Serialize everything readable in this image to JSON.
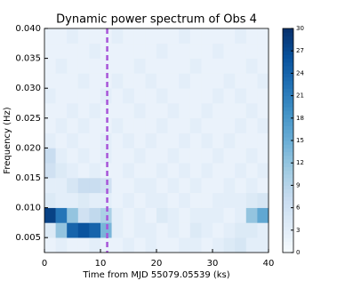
{
  "chart_data": {
    "type": "heatmap",
    "title": "Dynamic power spectrum of Obs 4",
    "x_label": "Time from MJD 55079.05539 (ks)",
    "y_label": "Frequency (Hz)",
    "x_edges": [
      0,
      2,
      4,
      6,
      8,
      10,
      12,
      14,
      16,
      18,
      20,
      22,
      24,
      26,
      28,
      30,
      32,
      34,
      36,
      38,
      40
    ],
    "y_edges": [
      0.0025,
      0.005,
      0.0075,
      0.01,
      0.0125,
      0.015,
      0.0175,
      0.02,
      0.0225,
      0.025,
      0.0275,
      0.03,
      0.0325,
      0.035,
      0.0375,
      0.04
    ],
    "values": [
      [
        2,
        3,
        2,
        2,
        3,
        2,
        2,
        3,
        2,
        3,
        2,
        2,
        3,
        3,
        2,
        3,
        4,
        5,
        3,
        3
      ],
      [
        4,
        12,
        24,
        26,
        24,
        14,
        3,
        2,
        3,
        3,
        2,
        3,
        2,
        4,
        3,
        2,
        3,
        4,
        4,
        3
      ],
      [
        28,
        22,
        12,
        6,
        8,
        10,
        3,
        2,
        3,
        2,
        4,
        3,
        2,
        3,
        3,
        3,
        2,
        3,
        12,
        16
      ],
      [
        4,
        3,
        3,
        4,
        3,
        3,
        2,
        3,
        2,
        3,
        3,
        2,
        3,
        2,
        2,
        3,
        3,
        3,
        4,
        5
      ],
      [
        3,
        3,
        5,
        7,
        7,
        6,
        2,
        2,
        3,
        3,
        2,
        3,
        2,
        3,
        2,
        2,
        3,
        2,
        3,
        2
      ],
      [
        6,
        4,
        3,
        2,
        3,
        2,
        2,
        3,
        2,
        2,
        3,
        2,
        3,
        2,
        3,
        2,
        2,
        3,
        2,
        3
      ],
      [
        7,
        3,
        2,
        3,
        2,
        3,
        2,
        2,
        3,
        2,
        2,
        3,
        2,
        2,
        2,
        3,
        2,
        2,
        3,
        2
      ],
      [
        3,
        2,
        3,
        2,
        2,
        3,
        2,
        3,
        2,
        3,
        2,
        2,
        3,
        2,
        3,
        2,
        3,
        2,
        2,
        2
      ],
      [
        2,
        3,
        2,
        3,
        2,
        2,
        3,
        2,
        2,
        2,
        3,
        2,
        2,
        3,
        2,
        2,
        2,
        3,
        2,
        3
      ],
      [
        2,
        2,
        3,
        2,
        3,
        2,
        2,
        2,
        3,
        2,
        2,
        3,
        2,
        2,
        3,
        2,
        2,
        2,
        3,
        2
      ],
      [
        3,
        2,
        2,
        2,
        2,
        3,
        2,
        3,
        2,
        2,
        3,
        2,
        2,
        2,
        2,
        3,
        2,
        3,
        2,
        2
      ],
      [
        2,
        2,
        2,
        3,
        2,
        2,
        3,
        2,
        2,
        3,
        2,
        2,
        3,
        2,
        2,
        2,
        3,
        2,
        2,
        3
      ],
      [
        2,
        3,
        2,
        2,
        2,
        2,
        2,
        2,
        3,
        2,
        2,
        2,
        2,
        3,
        2,
        2,
        2,
        2,
        3,
        2
      ],
      [
        2,
        2,
        2,
        2,
        3,
        2,
        2,
        2,
        2,
        2,
        3,
        2,
        2,
        2,
        2,
        3,
        2,
        2,
        2,
        2
      ],
      [
        2,
        2,
        3,
        2,
        2,
        2,
        3,
        2,
        2,
        2,
        2,
        2,
        3,
        2,
        2,
        2,
        2,
        3,
        2,
        2
      ]
    ],
    "xlim": [
      0,
      40
    ],
    "ylim": [
      0.0025,
      0.04
    ],
    "xticks": [
      0,
      10,
      20,
      30,
      40
    ],
    "yticks": [
      0.005,
      {
        "value": 0.01,
        "label": "0.010"
      },
      0.015,
      {
        "value": 0.02,
        "label": "0.020"
      },
      0.025,
      {
        "value": 0.03,
        "label": "0.030"
      },
      0.035,
      {
        "value": 0.04,
        "label": "0.040"
      }
    ],
    "clim": [
      0,
      30
    ],
    "cticks": [
      0,
      3,
      6,
      9,
      12,
      15,
      18,
      21,
      24,
      27,
      30
    ],
    "colormap": [
      "#f7fbff",
      "#deebf7",
      "#c6dbef",
      "#9ecae1",
      "#6baed6",
      "#4292c6",
      "#2171b5",
      "#08519c",
      "#08306b"
    ],
    "vline": {
      "x": 11.2,
      "color": "#a855d8"
    }
  }
}
